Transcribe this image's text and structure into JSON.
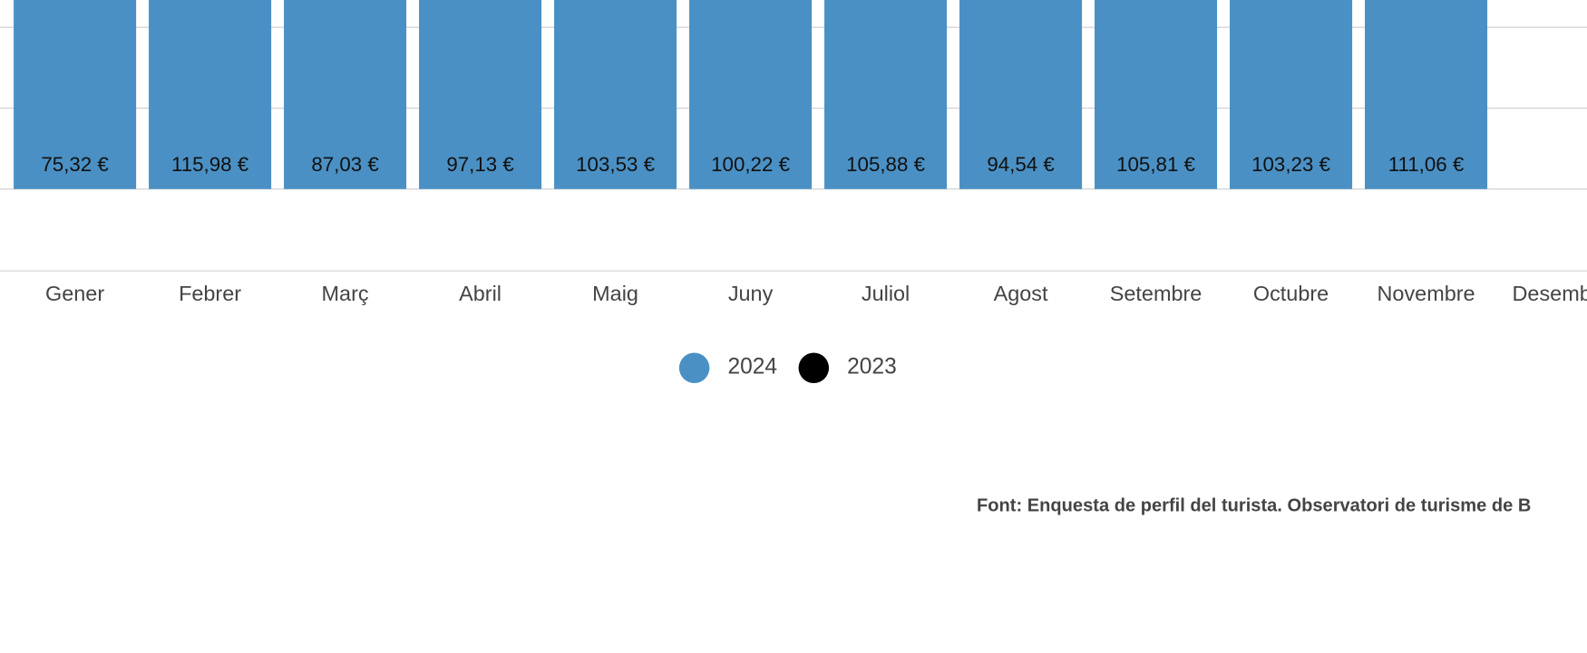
{
  "chart_data": {
    "type": "bar",
    "categories": [
      "Gener",
      "Febrer",
      "Març",
      "Abril",
      "Maig",
      "Juny",
      "Juliol",
      "Agost",
      "Setembre",
      "Octubre",
      "Novembre",
      "Desembre"
    ],
    "series": [
      {
        "name": "2024",
        "color": "#4a90c4",
        "values": [
          75.32,
          115.98,
          87.03,
          97.13,
          103.53,
          100.22,
          105.88,
          94.54,
          105.81,
          103.23,
          111.06,
          null
        ],
        "value_labels": [
          "75,32 €",
          "115,98 €",
          "87,03 €",
          "97,13 €",
          "103,53 €",
          "100,22 €",
          "105,88 €",
          "94,54 €",
          "105,81 €",
          "103,23 €",
          "111,06 €",
          null
        ]
      },
      {
        "name": "2023",
        "color": "#000000",
        "values": [
          null,
          null,
          null,
          null,
          null,
          null,
          null,
          null,
          null,
          null,
          null,
          null
        ]
      }
    ],
    "source": "Font: Enquesta de perfil del turista. Observatori de turisme de B"
  }
}
